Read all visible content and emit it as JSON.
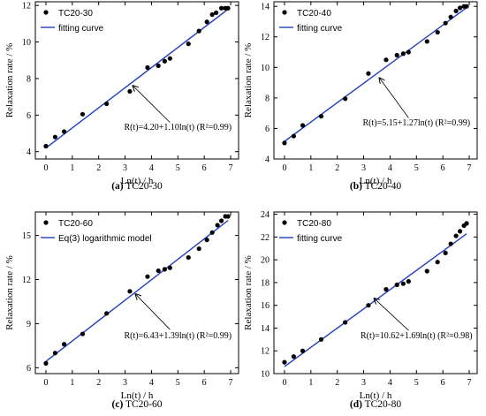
{
  "chart_data": [
    {
      "type": "scatter",
      "panel_id": "a",
      "caption_label": "(a)",
      "caption_text": " TC20-30",
      "xlabel": "Ln(t) / h",
      "ylabel": "Relaxation rate / %",
      "xlim": [
        -0.4,
        7.3
      ],
      "ylim": [
        3.6,
        12.2
      ],
      "xticks": [
        0,
        1,
        2,
        3,
        4,
        5,
        6,
        7
      ],
      "yticks": [
        4,
        6,
        8,
        10,
        12
      ],
      "fit": {
        "intercept": 4.2,
        "slope": 1.1,
        "x_range": [
          0,
          6.9
        ]
      },
      "equation": "R(t)=4.20+1.10ln(t)   (R²=0.99)",
      "equation_x": 5.0,
      "equation_y": 5.2,
      "arrow_from": [
        4.7,
        5.6
      ],
      "arrow_to": [
        3.3,
        7.6
      ],
      "series": [
        {
          "name": "TC20-30",
          "marker": "point",
          "x": [
            0,
            0.35,
            0.69,
            1.39,
            2.3,
            3.18,
            3.85,
            4.26,
            4.5,
            4.7,
            5.4,
            5.8,
            6.1,
            6.3,
            6.45,
            6.65,
            6.8,
            6.9
          ],
          "y": [
            4.3,
            4.8,
            5.1,
            6.05,
            6.62,
            7.3,
            8.6,
            8.7,
            8.95,
            9.1,
            9.9,
            10.6,
            11.1,
            11.5,
            11.6,
            11.85,
            11.85,
            11.85
          ]
        },
        {
          "name": "fitting curve",
          "marker": "line",
          "color": "#1f3fbf"
        }
      ]
    },
    {
      "type": "scatter",
      "panel_id": "b",
      "caption_label": "(b)",
      "caption_text": " TC20-40",
      "xlabel": "Ln(t) / h",
      "ylabel": "Relaxation rate / %",
      "xlim": [
        -0.4,
        7.3
      ],
      "ylim": [
        4.0,
        14.3
      ],
      "xticks": [
        0,
        1,
        2,
        3,
        4,
        5,
        6,
        7
      ],
      "yticks": [
        4,
        6,
        8,
        10,
        12,
        14
      ],
      "fit": {
        "intercept": 5.15,
        "slope": 1.27,
        "x_range": [
          0,
          6.9
        ]
      },
      "equation": "R(t)=5.15+1.27ln(t)   (R²=0.99)",
      "equation_x": 5.0,
      "equation_y": 6.2,
      "arrow_from": [
        4.7,
        6.7
      ],
      "arrow_to": [
        3.6,
        9.3
      ],
      "series": [
        {
          "name": "TC20-40",
          "marker": "point",
          "x": [
            0,
            0.35,
            0.69,
            1.39,
            2.3,
            3.18,
            3.85,
            4.26,
            4.5,
            4.7,
            5.4,
            5.8,
            6.1,
            6.3,
            6.5,
            6.65,
            6.8,
            6.9
          ],
          "y": [
            5.05,
            5.5,
            6.2,
            6.8,
            7.95,
            9.6,
            10.5,
            10.8,
            10.9,
            11.0,
            11.7,
            12.3,
            12.9,
            13.3,
            13.7,
            13.9,
            14.0,
            14.0
          ]
        },
        {
          "name": "fitting curve",
          "marker": "line",
          "color": "#1f3fbf"
        }
      ]
    },
    {
      "type": "scatter",
      "panel_id": "c",
      "caption_label": "(c)",
      "caption_text": " TC20-60",
      "xlabel": "Ln(t) / h",
      "ylabel": "Relaxation rate / %",
      "xlim": [
        -0.4,
        7.3
      ],
      "ylim": [
        5.6,
        16.6
      ],
      "xticks": [
        0,
        1,
        2,
        3,
        4,
        5,
        6,
        7
      ],
      "yticks": [
        6,
        9,
        12,
        15
      ],
      "fit": {
        "intercept": 6.43,
        "slope": 1.39,
        "x_range": [
          0,
          6.9
        ]
      },
      "equation": "R(t)=6.43+1.39ln(t)   (R²=0.99)",
      "equation_x": 5.0,
      "equation_y": 8.0,
      "arrow_from": [
        4.7,
        8.6
      ],
      "arrow_to": [
        3.4,
        11.0
      ],
      "series": [
        {
          "name": "TC20-60",
          "marker": "point",
          "x": [
            0,
            0.35,
            0.69,
            1.39,
            2.3,
            3.18,
            3.85,
            4.26,
            4.5,
            4.7,
            5.4,
            5.8,
            6.1,
            6.3,
            6.5,
            6.65,
            6.8,
            6.9
          ],
          "y": [
            6.3,
            7.0,
            7.6,
            8.3,
            9.7,
            11.2,
            12.2,
            12.6,
            12.7,
            12.8,
            13.5,
            14.1,
            14.7,
            15.2,
            15.7,
            16.0,
            16.3,
            16.3
          ]
        },
        {
          "name": "Eq(3) logarithmic model",
          "marker": "line",
          "color": "#1f3fbf"
        }
      ]
    },
    {
      "type": "scatter",
      "panel_id": "d",
      "caption_label": "(d)",
      "caption_text": " TC20-80",
      "xlabel": "Ln(t) / h",
      "ylabel": "Relaxation rate / %",
      "xlim": [
        -0.4,
        7.3
      ],
      "ylim": [
        10.0,
        24.2
      ],
      "xticks": [
        0,
        1,
        2,
        3,
        4,
        5,
        6,
        7
      ],
      "yticks": [
        10,
        12,
        14,
        16,
        18,
        20,
        22,
        24
      ],
      "fit": {
        "intercept": 10.62,
        "slope": 1.69,
        "x_range": [
          0,
          6.9
        ]
      },
      "equation": "R(t)=10.62+1.69ln(t)   (R²=0.98)",
      "equation_x": 5.0,
      "equation_y": 13.1,
      "arrow_from": [
        4.7,
        13.8
      ],
      "arrow_to": [
        3.4,
        16.6
      ],
      "series": [
        {
          "name": "TC20-80",
          "marker": "point",
          "x": [
            0,
            0.35,
            0.69,
            1.39,
            2.3,
            3.18,
            3.85,
            4.26,
            4.5,
            4.7,
            5.4,
            5.8,
            6.1,
            6.3,
            6.5,
            6.65,
            6.8,
            6.9
          ],
          "y": [
            11.0,
            11.5,
            12.0,
            13.0,
            14.5,
            16.0,
            17.4,
            17.8,
            17.9,
            18.1,
            19.0,
            19.8,
            20.6,
            21.4,
            22.1,
            22.5,
            23.0,
            23.2
          ]
        },
        {
          "name": "fitting curve",
          "marker": "line",
          "color": "#1f3fbf"
        }
      ]
    }
  ]
}
